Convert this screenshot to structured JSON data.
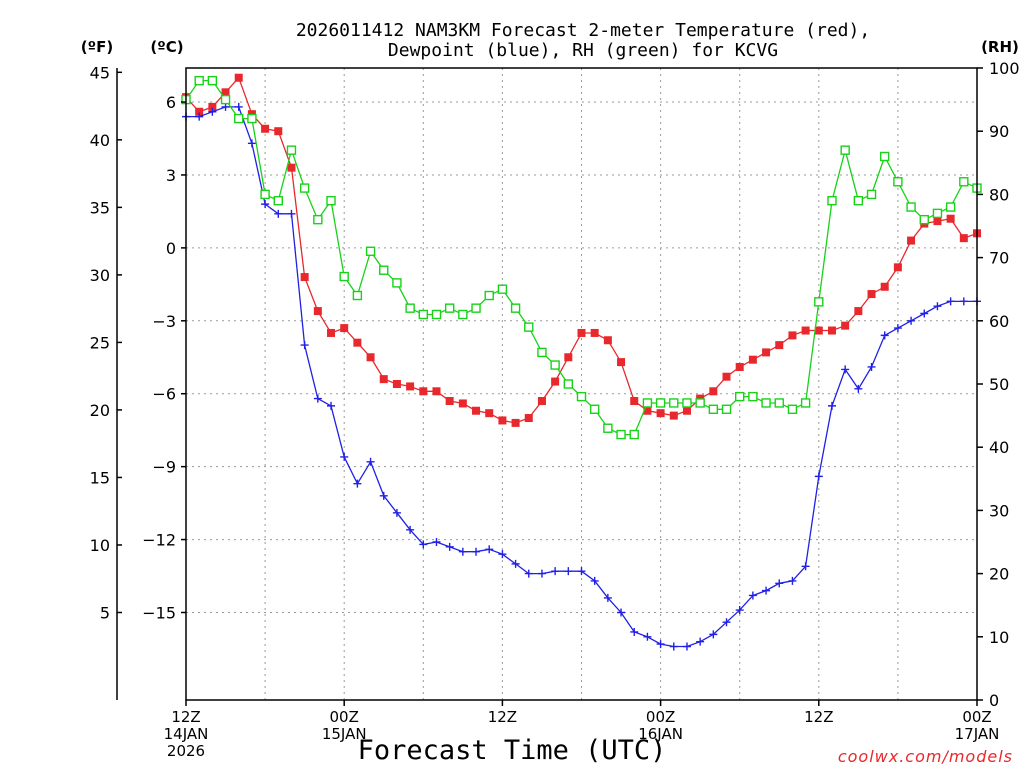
{
  "chart_data": {
    "type": "line",
    "title_line1": "2026011412 NAM3KM Forecast 2-meter Temperature (red),",
    "title_line2": "Dewpoint (blue), RH (green) for KCVG",
    "xlabel": "Forecast Time (UTC)",
    "unit_labels": {
      "fahrenheit": "(ºF)",
      "celsius": "(ºC)",
      "rh": "(RH)"
    },
    "x_range_hours": [
      0,
      60
    ],
    "y_range_celsius": [
      -18.6,
      7.4
    ],
    "y_range_rh": [
      0,
      100
    ],
    "fahrenheit_ticks": [
      {
        "value": 45,
        "label": "45"
      },
      {
        "value": 40,
        "label": "40"
      },
      {
        "value": 35,
        "label": "35"
      },
      {
        "value": 30,
        "label": "30"
      },
      {
        "value": 25,
        "label": "25"
      },
      {
        "value": 20,
        "label": "20"
      },
      {
        "value": 15,
        "label": "15"
      },
      {
        "value": 10,
        "label": "10"
      },
      {
        "value": 5,
        "label": "5"
      }
    ],
    "celsius_ticks": [
      {
        "value": 6,
        "label": "6"
      },
      {
        "value": 3,
        "label": "3"
      },
      {
        "value": 0,
        "label": "0"
      },
      {
        "value": -3,
        "label": "−3"
      },
      {
        "value": -6,
        "label": "−6"
      },
      {
        "value": -9,
        "label": "−9"
      },
      {
        "value": -12,
        "label": "−12"
      },
      {
        "value": -15,
        "label": "−15"
      }
    ],
    "rh_ticks": [
      {
        "value": 0,
        "label": "0"
      },
      {
        "value": 10,
        "label": "10"
      },
      {
        "value": 20,
        "label": "20"
      },
      {
        "value": 30,
        "label": "30"
      },
      {
        "value": 40,
        "label": "40"
      },
      {
        "value": 50,
        "label": "50"
      },
      {
        "value": 60,
        "label": "60"
      },
      {
        "value": 70,
        "label": "70"
      },
      {
        "value": 80,
        "label": "80"
      },
      {
        "value": 90,
        "label": "90"
      },
      {
        "value": 100,
        "label": "100"
      }
    ],
    "x_ticks": [
      {
        "hour": 0,
        "lines": [
          "12Z",
          "14JAN",
          "2026"
        ]
      },
      {
        "hour": 12,
        "lines": [
          "00Z",
          "15JAN"
        ]
      },
      {
        "hour": 24,
        "lines": [
          "12Z",
          ""
        ]
      },
      {
        "hour": 36,
        "lines": [
          "00Z",
          "16JAN"
        ]
      },
      {
        "hour": 48,
        "lines": [
          "12Z",
          ""
        ]
      },
      {
        "hour": 60,
        "lines": [
          "00Z",
          "17JAN"
        ]
      }
    ],
    "hours": [
      0,
      1,
      2,
      3,
      4,
      5,
      6,
      7,
      8,
      9,
      10,
      11,
      12,
      13,
      14,
      15,
      16,
      17,
      18,
      19,
      20,
      21,
      22,
      23,
      24,
      25,
      26,
      27,
      28,
      29,
      30,
      31,
      32,
      33,
      34,
      35,
      36,
      37,
      38,
      39,
      40,
      41,
      42,
      43,
      44,
      45,
      46,
      47,
      48,
      49,
      50,
      51,
      52,
      53,
      54,
      55,
      56,
      57,
      58,
      59,
      60
    ],
    "series": [
      {
        "name": "2-meter Temperature",
        "axis": "celsius",
        "color": "#e8282c",
        "marker": "filled-square",
        "values": [
          6.2,
          5.6,
          5.8,
          6.4,
          7.0,
          5.5,
          4.9,
          4.8,
          3.3,
          -1.2,
          -2.6,
          -3.5,
          -3.3,
          -3.9,
          -4.5,
          -5.4,
          -5.6,
          -5.7,
          -5.9,
          -5.9,
          -6.3,
          -6.4,
          -6.7,
          -6.8,
          -7.1,
          -7.2,
          -7.0,
          -6.3,
          -5.5,
          -4.5,
          -3.5,
          -3.5,
          -3.8,
          -4.7,
          -6.3,
          -6.7,
          -6.8,
          -6.9,
          -6.7,
          -6.2,
          -5.9,
          -5.3,
          -4.9,
          -4.6,
          -4.3,
          -4.0,
          -3.6,
          -3.4,
          -3.4,
          -3.4,
          -3.2,
          -2.6,
          -1.9,
          -1.6,
          -0.8,
          0.3,
          1.0,
          1.1,
          1.2,
          0.4,
          0.6
        ]
      },
      {
        "name": "Dewpoint",
        "axis": "celsius",
        "color": "#2020e6",
        "marker": "plus",
        "values": [
          5.4,
          5.4,
          5.6,
          5.8,
          5.8,
          4.3,
          1.8,
          1.4,
          1.4,
          -4.0,
          -6.2,
          -6.5,
          -8.6,
          -9.7,
          -8.8,
          -10.2,
          -10.9,
          -11.6,
          -12.2,
          -12.1,
          -12.3,
          -12.5,
          -12.5,
          -12.4,
          -12.6,
          -13.0,
          -13.4,
          -13.4,
          -13.3,
          -13.3,
          -13.3,
          -13.7,
          -14.4,
          -15.0,
          -15.8,
          -16.0,
          -16.3,
          -16.4,
          -16.4,
          -16.2,
          -15.9,
          -15.4,
          -14.9,
          -14.3,
          -14.1,
          -13.8,
          -13.7,
          -13.1,
          -9.4,
          -6.5,
          -5.0,
          -5.8,
          -4.9,
          -3.6,
          -3.3,
          -3.0,
          -2.7,
          -2.4,
          -2.2,
          -2.2,
          -2.2
        ]
      },
      {
        "name": "RH",
        "axis": "rh",
        "color": "#18d218",
        "marker": "open-square",
        "values": [
          95,
          98,
          98,
          95,
          92,
          92,
          80,
          79,
          87,
          81,
          76,
          79,
          67,
          64,
          71,
          68,
          66,
          62,
          61,
          61,
          62,
          61,
          62,
          64,
          65,
          62,
          59,
          55,
          53,
          50,
          48,
          46,
          43,
          42,
          42,
          47,
          47,
          47,
          47,
          47,
          46,
          46,
          48,
          48,
          47,
          47,
          46,
          47,
          63,
          79,
          87,
          79,
          80,
          86,
          82,
          78,
          76,
          77,
          78,
          82,
          81
        ]
      }
    ]
  },
  "footer": {
    "site": "coolwx.com/models"
  }
}
